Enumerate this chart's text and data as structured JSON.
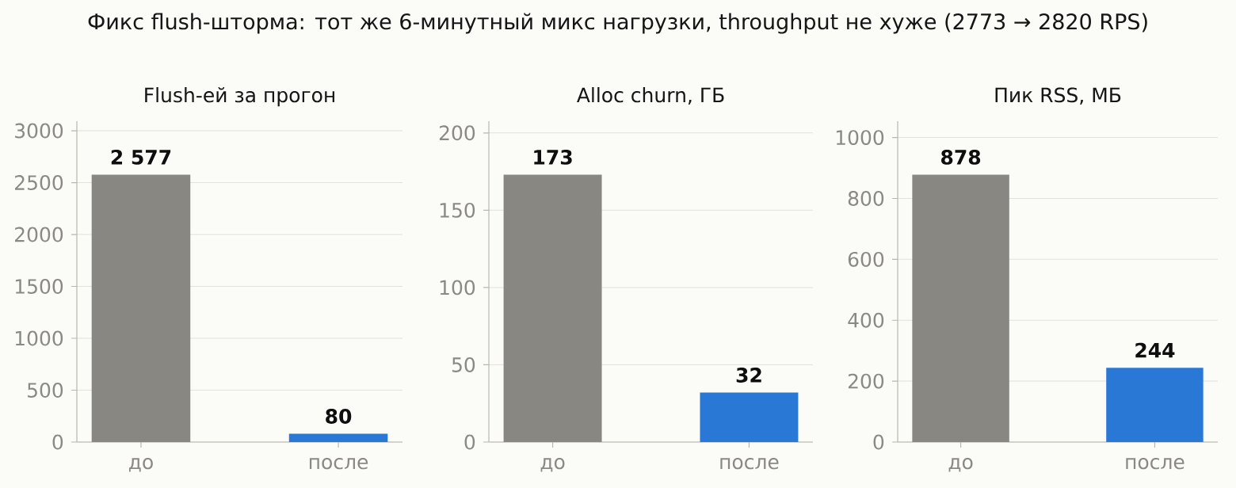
{
  "chart_data": [
    {
      "type": "bar",
      "title": "Flush-ей за прогон",
      "categories": [
        "до",
        "после"
      ],
      "values": [
        2577,
        80
      ],
      "value_labels": [
        "2 577",
        "80"
      ],
      "colors": [
        "#888781",
        "#2a78d6"
      ],
      "ylim": [
        0,
        3092
      ],
      "yticks": [
        0,
        500,
        1000,
        1500,
        2000,
        2500,
        3000
      ],
      "grid": "y",
      "annotations": [
        "Фикс flush-шторма: тот же 6-минутный микс нагрузки, throughput не хуже (2773 → 2820 RPS)"
      ]
    },
    {
      "type": "bar",
      "title": "Alloc churn, ГБ",
      "categories": [
        "до",
        "после"
      ],
      "values": [
        173,
        32
      ],
      "data_labels": true,
      "colors": [
        "#888781",
        "#2a78d6"
      ],
      "ylim": [
        0,
        207.6
      ],
      "yticks": [
        0,
        50,
        100,
        150,
        200
      ],
      "grid": "y"
    },
    {
      "type": "bar",
      "title": "Пик RSS, МБ",
      "categories": [
        "до",
        "после"
      ],
      "values": [
        878,
        244
      ],
      "data_labels": true,
      "colors": [
        "#888781",
        "#2a78d6"
      ],
      "ylim": [
        0,
        1053.6
      ],
      "yticks": [
        0,
        200,
        400,
        600,
        800,
        1000
      ],
      "grid": "y"
    }
  ]
}
